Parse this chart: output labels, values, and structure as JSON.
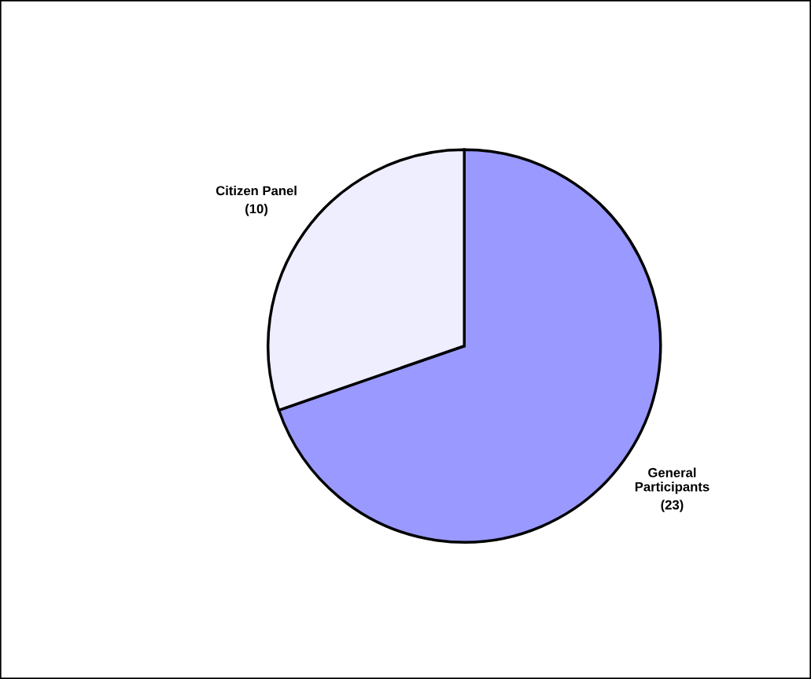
{
  "chart_data": {
    "type": "pie",
    "categories": [
      "General Participants",
      "Citizen Panel"
    ],
    "values": [
      23,
      10
    ],
    "value_labels": [
      "(23)",
      "(10)"
    ],
    "colors": [
      "#9999ff",
      "#eeeeff"
    ]
  }
}
